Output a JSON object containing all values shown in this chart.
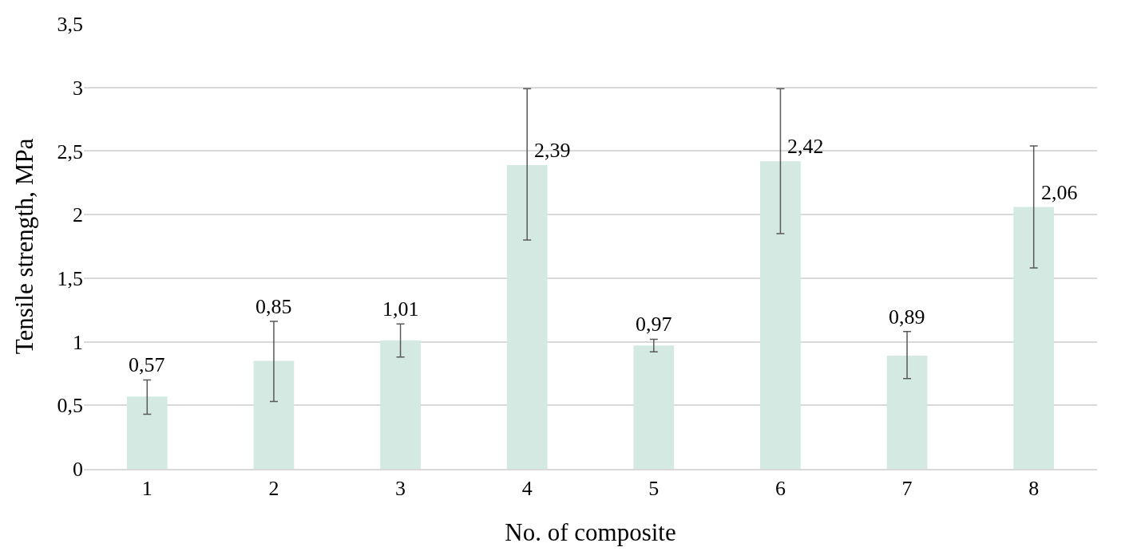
{
  "chart_data": {
    "type": "bar",
    "xlabel": "No. of composite",
    "ylabel": "Tensile strength, MPa",
    "categories": [
      "1",
      "2",
      "3",
      "4",
      "5",
      "6",
      "7",
      "8"
    ],
    "values": [
      0.57,
      0.85,
      1.01,
      2.39,
      0.97,
      2.42,
      0.89,
      2.06
    ],
    "value_labels": [
      "0,57",
      "0,85",
      "1,01",
      "2,39",
      "0,97",
      "2,42",
      "0,89",
      "2,06"
    ],
    "errors": [
      [
        0.43,
        0.7
      ],
      [
        0.53,
        1.16
      ],
      [
        0.88,
        1.14
      ],
      [
        1.8,
        2.99
      ],
      [
        0.92,
        1.02
      ],
      [
        1.85,
        2.99
      ],
      [
        0.71,
        1.08
      ],
      [
        1.58,
        2.54
      ]
    ],
    "color": "#d4e9e2",
    "ylim": [
      0,
      3.5
    ],
    "yticks": [
      0,
      {
        "value": 0.5,
        "label": "0,5"
      },
      1,
      {
        "value": 1.5,
        "label": "1,5"
      },
      2,
      {
        "value": 2.5,
        "label": "2,5"
      },
      3,
      {
        "value": 3.5,
        "label": "3,5"
      }
    ],
    "grid": "y"
  }
}
